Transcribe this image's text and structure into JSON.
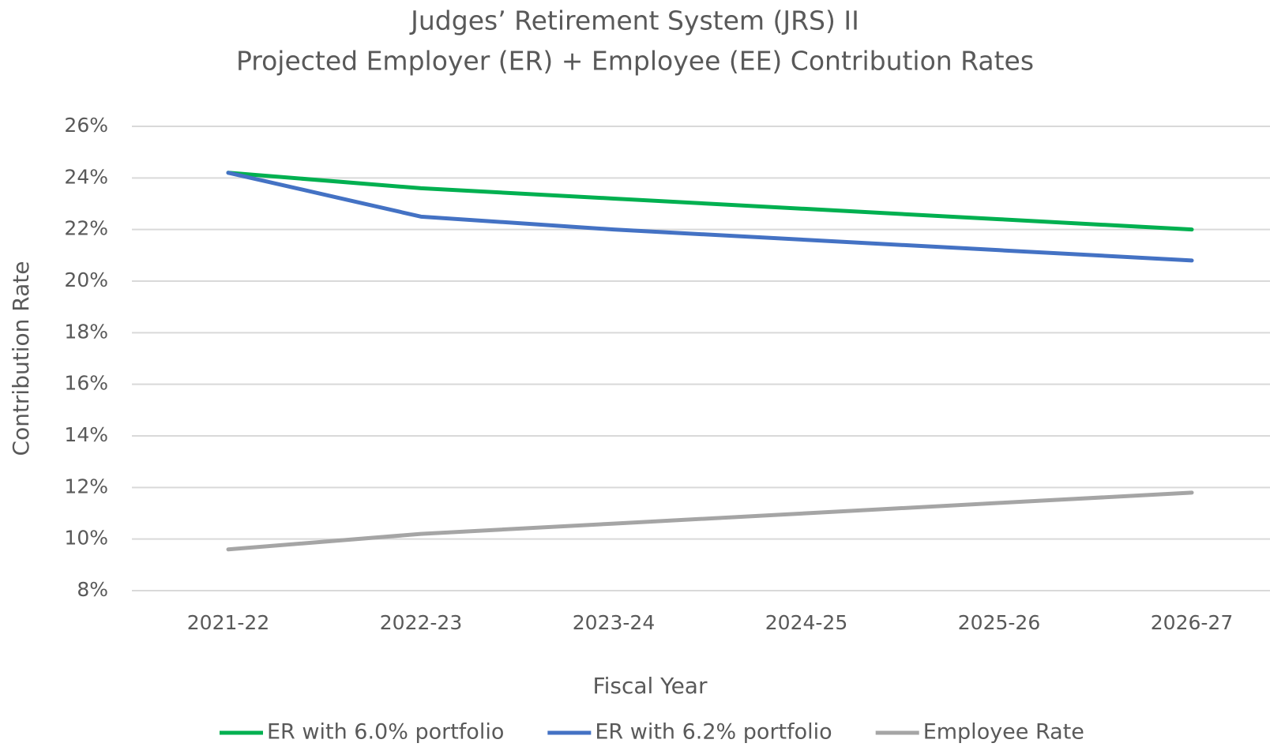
{
  "chart_data": {
    "type": "line",
    "title": "Judges’ Retirement System (JRS) II",
    "subtitle": "Projected Employer (ER) + Employee (EE) Contribution Rates",
    "x_label": "Fiscal Year",
    "y_label": "Contribution Rate",
    "categories": [
      "2021-22",
      "2022-23",
      "2023-24",
      "2024-25",
      "2025-26",
      "2026-27"
    ],
    "series": [
      {
        "name": "ER with 6.0% portfolio",
        "color": "#00b050",
        "values": [
          24.2,
          23.6,
          23.2,
          22.8,
          22.4,
          22.0
        ]
      },
      {
        "name": "ER with 6.2% portfolio",
        "color": "#4472c4",
        "values": [
          24.2,
          22.5,
          22.0,
          21.6,
          21.2,
          20.8
        ]
      },
      {
        "name": "Employee Rate",
        "color": "#a5a5a5",
        "values": [
          9.6,
          10.2,
          10.6,
          11.0,
          11.4,
          11.8
        ]
      }
    ],
    "ylim": [
      8,
      26
    ],
    "yticks": [
      {
        "value": 8,
        "label": "8%"
      },
      {
        "value": 10,
        "label": "10%"
      },
      {
        "value": 12,
        "label": "12%"
      },
      {
        "value": 14,
        "label": "14%"
      },
      {
        "value": 16,
        "label": "16%"
      },
      {
        "value": 18,
        "label": "18%"
      },
      {
        "value": 20,
        "label": "20%"
      },
      {
        "value": 22,
        "label": "22%"
      },
      {
        "value": 24,
        "label": "24%"
      },
      {
        "value": 26,
        "label": "26%"
      }
    ],
    "grid": true,
    "legend": "bottom"
  }
}
